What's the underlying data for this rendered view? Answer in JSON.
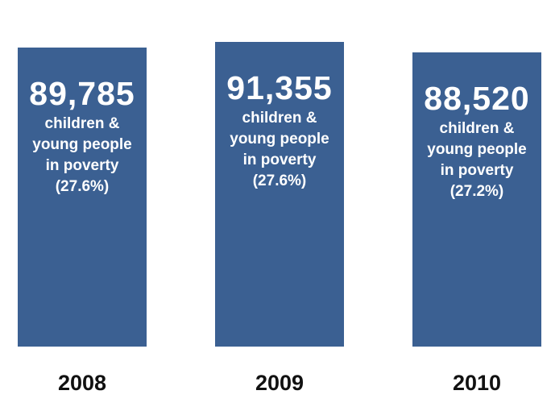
{
  "chart_data": {
    "type": "bar",
    "title": "",
    "xlabel": "",
    "ylabel": "",
    "categories": [
      "2008",
      "2009",
      "2010"
    ],
    "values": [
      89785,
      91355,
      88520
    ],
    "data_labels": [
      {
        "value": "89,785",
        "description": "children & young people in poverty",
        "percent": "(27.6%)"
      },
      {
        "value": "91,355",
        "description": "children & young people in poverty",
        "percent": "(27.6%)"
      },
      {
        "value": "88,520",
        "description": "children & young people in poverty",
        "percent": "(27.2%)"
      }
    ],
    "percent_values": [
      27.6,
      27.6,
      27.2
    ],
    "ylim": [
      0,
      100000
    ],
    "grid": false,
    "legend": "none"
  },
  "colors": {
    "bar": "#3b6092",
    "bar_text": "#ffffff",
    "category_text": "#111111"
  }
}
